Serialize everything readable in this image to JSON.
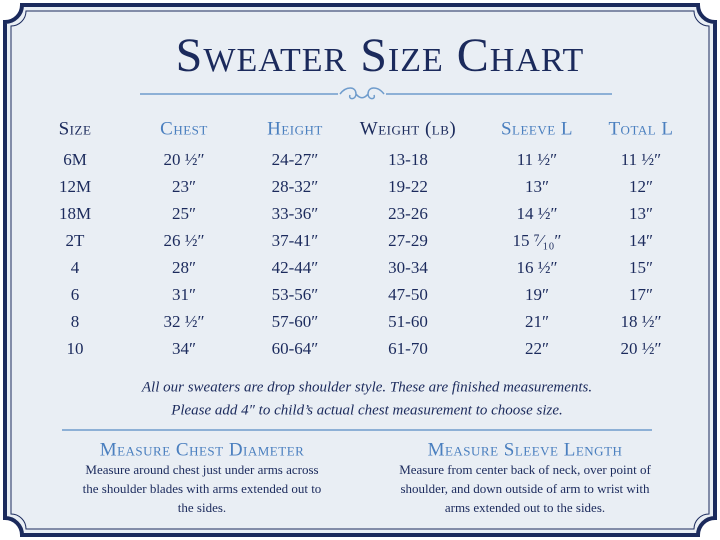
{
  "header": {
    "title": "Sweater Size Chart"
  },
  "table": {
    "columns": [
      "Size",
      "Chest",
      "Height",
      "Weight (lb)",
      "Sleeve L",
      "Total L"
    ],
    "rows": [
      [
        "6M",
        "20 ½″",
        "24-27″",
        "13-18",
        "11 ½″",
        "11 ½″"
      ],
      [
        "12M",
        "23″",
        "28-32″",
        "19-22",
        "13″",
        "12″"
      ],
      [
        "18M",
        "25″",
        "33-36″",
        "23-26",
        "14 ½″",
        "13″"
      ],
      [
        "2T",
        "26 ½″",
        "37-41″",
        "27-29",
        "15 ⁷⁄₁₀″",
        "14″"
      ],
      [
        "4",
        "28″",
        "42-44″",
        "30-34",
        "16 ½″",
        "15″"
      ],
      [
        "6",
        "31″",
        "53-56″",
        "47-50",
        "19″",
        "17″"
      ],
      [
        "8",
        "32 ½″",
        "57-60″",
        "51-60",
        "21″",
        "18 ½″"
      ],
      [
        "10",
        "34″",
        "60-64″",
        "61-70",
        "22″",
        "20 ½″"
      ]
    ]
  },
  "note": {
    "lines": [
      "All our sweaters are drop shoulder style. These are finished measurements.",
      "Please add 4″ to child’s actual chest measurement to choose size."
    ]
  },
  "sections": [
    {
      "title": "Measure Chest Diameter",
      "lines": [
        "Measure around chest just under arms across",
        "the shoulder blades with arms extended out to",
        "the sides."
      ]
    },
    {
      "title": "Measure Sleeve Length",
      "lines": [
        "Measure from center back of neck, over point of",
        "shoulder, and down outside of arm to wrist with",
        "arms extended out to the sides."
      ]
    }
  ]
}
